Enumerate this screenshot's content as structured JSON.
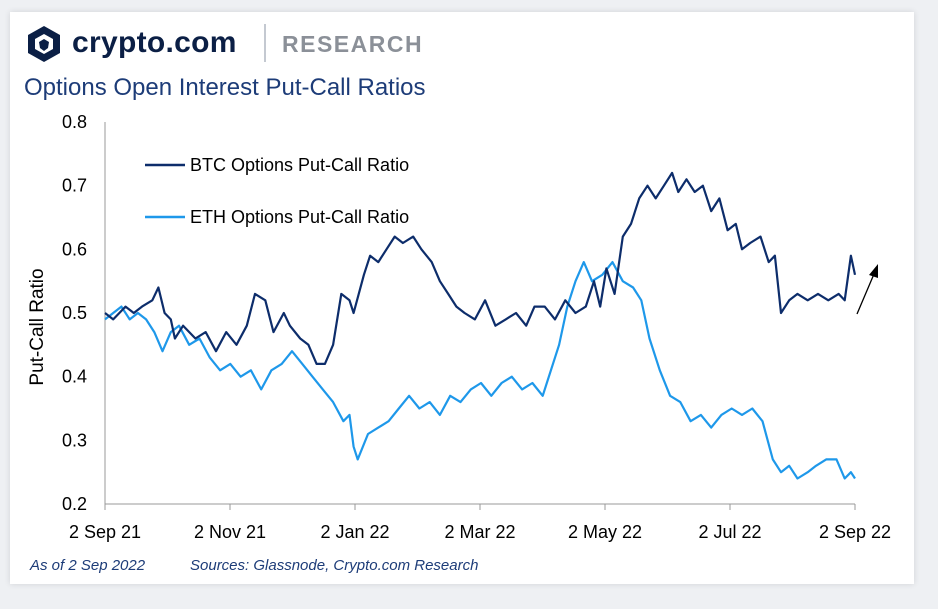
{
  "header": {
    "brand_name": "crypto.com",
    "brand_sub": "RESEARCH",
    "logo_icon": "crypto-com-lion-icon"
  },
  "colors": {
    "btc": "#0d2d6b",
    "eth": "#1e98ea",
    "title": "#1d3c78",
    "axis": "#000000"
  },
  "footer": {
    "as_of": "As of 2 Sep 2022",
    "sources": "Sources: Glassnode, Crypto.com Research"
  },
  "chart_data": {
    "type": "line",
    "title": "Options Open Interest Put-Call Ratios",
    "ylabel": "Put-Call Ratio",
    "xlabel": "",
    "ylim": [
      0.2,
      0.8
    ],
    "yticks": [
      "0.8",
      "0.7",
      "0.6",
      "0.5",
      "0.4",
      "0.3",
      "0.2"
    ],
    "xticks": [
      "2 Sep 21",
      "2 Nov 21",
      "2 Jan 22",
      "2 Mar 22",
      "2 May 22",
      "2 Jul 22",
      "2 Sep 22"
    ],
    "xrange": [
      "2021-09-02",
      "2022-09-02"
    ],
    "grid": false,
    "legend_position": "top-left",
    "annotation": "upward arrow near latest BTC value",
    "series": [
      {
        "name": "BTC Options Put-Call Ratio",
        "color": "#0d2d6b",
        "x": [
          "2021-09-02",
          "2021-09-06",
          "2021-09-12",
          "2021-09-16",
          "2021-09-20",
          "2021-09-25",
          "2021-09-28",
          "2021-10-01",
          "2021-10-04",
          "2021-10-06",
          "2021-10-10",
          "2021-10-16",
          "2021-10-21",
          "2021-10-26",
          "2021-10-31",
          "2021-11-05",
          "2021-11-10",
          "2021-11-14",
          "2021-11-19",
          "2021-11-23",
          "2021-11-28",
          "2021-12-01",
          "2021-12-06",
          "2021-12-10",
          "2021-12-14",
          "2021-12-18",
          "2021-12-22",
          "2021-12-26",
          "2021-12-30",
          "2022-01-01",
          "2022-01-06",
          "2022-01-09",
          "2022-01-13",
          "2022-01-17",
          "2022-01-21",
          "2022-01-25",
          "2022-01-30",
          "2022-02-03",
          "2022-02-08",
          "2022-02-12",
          "2022-02-16",
          "2022-02-20",
          "2022-02-24",
          "2022-03-01",
          "2022-03-06",
          "2022-03-11",
          "2022-03-16",
          "2022-03-21",
          "2022-03-26",
          "2022-03-30",
          "2022-04-04",
          "2022-04-09",
          "2022-04-14",
          "2022-04-19",
          "2022-04-24",
          "2022-04-28",
          "2022-05-01",
          "2022-05-04",
          "2022-05-08",
          "2022-05-12",
          "2022-05-16",
          "2022-05-20",
          "2022-05-24",
          "2022-05-28",
          "2022-06-01",
          "2022-06-05",
          "2022-06-08",
          "2022-06-12",
          "2022-06-16",
          "2022-06-20",
          "2022-06-24",
          "2022-06-28",
          "2022-07-02",
          "2022-07-06",
          "2022-07-09",
          "2022-07-13",
          "2022-07-18",
          "2022-07-22",
          "2022-07-25",
          "2022-07-28",
          "2022-08-01",
          "2022-08-05",
          "2022-08-10",
          "2022-08-15",
          "2022-08-20",
          "2022-08-25",
          "2022-08-28",
          "2022-08-31",
          "2022-09-02"
        ],
        "values": [
          0.5,
          0.49,
          0.51,
          0.5,
          0.51,
          0.52,
          0.54,
          0.5,
          0.49,
          0.46,
          0.48,
          0.46,
          0.47,
          0.44,
          0.47,
          0.45,
          0.48,
          0.53,
          0.52,
          0.47,
          0.5,
          0.48,
          0.46,
          0.45,
          0.42,
          0.42,
          0.45,
          0.53,
          0.52,
          0.5,
          0.56,
          0.59,
          0.58,
          0.6,
          0.62,
          0.61,
          0.62,
          0.6,
          0.58,
          0.55,
          0.53,
          0.51,
          0.5,
          0.49,
          0.52,
          0.48,
          0.49,
          0.5,
          0.48,
          0.51,
          0.51,
          0.49,
          0.52,
          0.5,
          0.51,
          0.55,
          0.51,
          0.57,
          0.53,
          0.62,
          0.64,
          0.68,
          0.7,
          0.68,
          0.7,
          0.72,
          0.69,
          0.71,
          0.69,
          0.7,
          0.66,
          0.68,
          0.63,
          0.64,
          0.6,
          0.61,
          0.62,
          0.58,
          0.59,
          0.5,
          0.52,
          0.53,
          0.52,
          0.53,
          0.52,
          0.53,
          0.52,
          0.59,
          0.56
        ]
      },
      {
        "name": "ETH Options Put-Call Ratio",
        "color": "#1e98ea",
        "x": [
          "2021-09-02",
          "2021-09-06",
          "2021-09-10",
          "2021-09-14",
          "2021-09-18",
          "2021-09-22",
          "2021-09-26",
          "2021-09-30",
          "2021-10-04",
          "2021-10-08",
          "2021-10-13",
          "2021-10-18",
          "2021-10-23",
          "2021-10-28",
          "2021-11-02",
          "2021-11-07",
          "2021-11-12",
          "2021-11-17",
          "2021-11-22",
          "2021-11-27",
          "2021-12-02",
          "2021-12-07",
          "2021-12-12",
          "2021-12-17",
          "2021-12-22",
          "2021-12-27",
          "2021-12-30",
          "2022-01-01",
          "2022-01-03",
          "2022-01-08",
          "2022-01-13",
          "2022-01-18",
          "2022-01-23",
          "2022-01-28",
          "2022-02-02",
          "2022-02-07",
          "2022-02-12",
          "2022-02-17",
          "2022-02-22",
          "2022-02-27",
          "2022-03-04",
          "2022-03-09",
          "2022-03-14",
          "2022-03-19",
          "2022-03-24",
          "2022-03-29",
          "2022-04-03",
          "2022-04-07",
          "2022-04-11",
          "2022-04-15",
          "2022-04-19",
          "2022-04-23",
          "2022-04-27",
          "2022-05-02",
          "2022-05-07",
          "2022-05-12",
          "2022-05-17",
          "2022-05-21",
          "2022-05-25",
          "2022-05-30",
          "2022-06-04",
          "2022-06-09",
          "2022-06-14",
          "2022-06-19",
          "2022-06-24",
          "2022-06-29",
          "2022-07-04",
          "2022-07-09",
          "2022-07-14",
          "2022-07-19",
          "2022-07-24",
          "2022-07-28",
          "2022-08-01",
          "2022-08-05",
          "2022-08-10",
          "2022-08-14",
          "2022-08-19",
          "2022-08-24",
          "2022-08-28",
          "2022-08-31",
          "2022-09-02"
        ],
        "values": [
          0.49,
          0.5,
          0.51,
          0.49,
          0.5,
          0.49,
          0.47,
          0.44,
          0.47,
          0.48,
          0.45,
          0.46,
          0.43,
          0.41,
          0.42,
          0.4,
          0.41,
          0.38,
          0.41,
          0.42,
          0.44,
          0.42,
          0.4,
          0.38,
          0.36,
          0.33,
          0.34,
          0.29,
          0.27,
          0.31,
          0.32,
          0.33,
          0.35,
          0.37,
          0.35,
          0.36,
          0.34,
          0.37,
          0.36,
          0.38,
          0.39,
          0.37,
          0.39,
          0.4,
          0.38,
          0.39,
          0.37,
          0.41,
          0.45,
          0.51,
          0.55,
          0.58,
          0.55,
          0.56,
          0.58,
          0.55,
          0.54,
          0.52,
          0.46,
          0.41,
          0.37,
          0.36,
          0.33,
          0.34,
          0.32,
          0.34,
          0.35,
          0.34,
          0.35,
          0.33,
          0.27,
          0.25,
          0.26,
          0.24,
          0.25,
          0.26,
          0.27,
          0.27,
          0.24,
          0.25,
          0.24
        ]
      }
    ]
  }
}
